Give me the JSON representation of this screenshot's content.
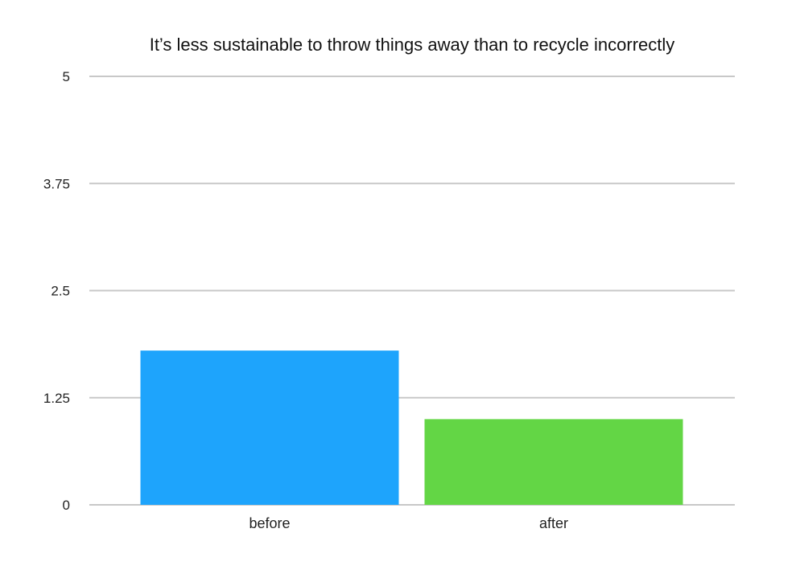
{
  "chart_data": {
    "type": "bar",
    "title": "It’s less sustainable to throw things away than to recycle incorrectly",
    "categories": [
      "before",
      "after"
    ],
    "values": [
      1.8,
      1.0
    ],
    "colors": [
      "#1ea4fc",
      "#63d645"
    ],
    "ylim": [
      0,
      5
    ],
    "yticks": [
      "0",
      "1.25",
      "2.5",
      "3.75",
      "5"
    ],
    "grid": true,
    "xlabel": "",
    "ylabel": ""
  }
}
